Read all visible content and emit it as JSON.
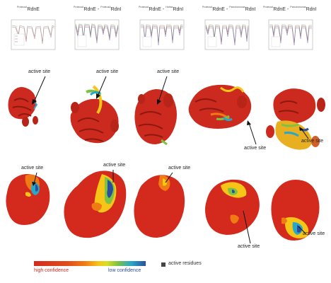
{
  "panels": [
    {
      "sup1": "ProteusA",
      "main1": "RdnE",
      "sup2": "",
      "main2": ""
    },
    {
      "sup1": "ProteusA",
      "main1": "RdnE",
      "sup2": "ProteusA",
      "main2": "RdnI"
    },
    {
      "sup1": "ProteusA",
      "main1": "RdnE",
      "sup2": "Hafnia",
      "main2": "RdnI"
    },
    {
      "sup1": "ProteusA",
      "main1": "RdnE",
      "sup2": "Pseudomonas",
      "main2": "RdnI"
    },
    {
      "sup1": "ProteusA",
      "main1": "RdnE",
      "sup2": "Pseudomonas",
      "main2": "RdnI"
    }
  ],
  "labels": {
    "active_site": "active site"
  },
  "legend": {
    "high": "high confidence",
    "low": "low confidence",
    "residues": "active residues"
  },
  "colors": {
    "high": "#d42a1e",
    "mid": "#f6c518",
    "low": "#2c4f9b",
    "residue_marker": "#444444"
  }
}
